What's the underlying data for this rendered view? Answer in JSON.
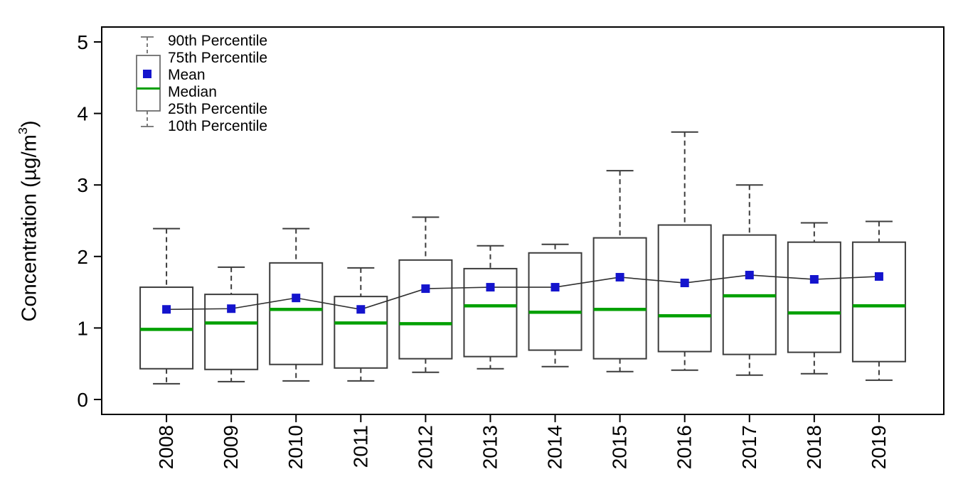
{
  "figure": {
    "background": "#ffffff",
    "ylabel_parts": {
      "prefix": "Concentration (µg/m",
      "sup": "3",
      "suffix": ")"
    }
  },
  "chart_data": {
    "type": "boxplot",
    "title": "",
    "xlabel": "",
    "ylabel": "Concentration (µg/m³)",
    "ylim": [
      -0.2,
      5.2
    ],
    "yticks": [
      0,
      1,
      2,
      3,
      4,
      5
    ],
    "grid": false,
    "legend_position": "top-left-inside",
    "legend": [
      "90th Percentile",
      "75th Percentile",
      "Mean",
      "Median",
      "25th Percentile",
      "10th Percentile"
    ],
    "categories": [
      "2008",
      "2009",
      "2010",
      "2011",
      "2012",
      "2013",
      "2014",
      "2015",
      "2016",
      "2017",
      "2018",
      "2019"
    ],
    "boxes": [
      {
        "label": "2008",
        "p10": 0.22,
        "p25": 0.43,
        "median": 0.98,
        "mean": 1.26,
        "p75": 1.57,
        "p90": 2.39
      },
      {
        "label": "2009",
        "p10": 0.25,
        "p25": 0.42,
        "median": 1.07,
        "mean": 1.27,
        "p75": 1.47,
        "p90": 1.85
      },
      {
        "label": "2010",
        "p10": 0.26,
        "p25": 0.49,
        "median": 1.26,
        "mean": 1.42,
        "p75": 1.91,
        "p90": 2.39
      },
      {
        "label": "2011",
        "p10": 0.26,
        "p25": 0.44,
        "median": 1.07,
        "mean": 1.26,
        "p75": 1.44,
        "p90": 1.84
      },
      {
        "label": "2012",
        "p10": 0.38,
        "p25": 0.57,
        "median": 1.06,
        "mean": 1.55,
        "p75": 1.95,
        "p90": 2.55
      },
      {
        "label": "2013",
        "p10": 0.43,
        "p25": 0.6,
        "median": 1.31,
        "mean": 1.57,
        "p75": 1.83,
        "p90": 2.15
      },
      {
        "label": "2014",
        "p10": 0.46,
        "p25": 0.69,
        "median": 1.22,
        "mean": 1.57,
        "p75": 2.05,
        "p90": 2.17
      },
      {
        "label": "2015",
        "p10": 0.39,
        "p25": 0.57,
        "median": 1.26,
        "mean": 1.71,
        "p75": 2.26,
        "p90": 3.2
      },
      {
        "label": "2016",
        "p10": 0.41,
        "p25": 0.67,
        "median": 1.17,
        "mean": 1.63,
        "p75": 2.44,
        "p90": 3.74
      },
      {
        "label": "2017",
        "p10": 0.34,
        "p25": 0.63,
        "median": 1.45,
        "mean": 1.74,
        "p75": 2.3,
        "p90": 3.0
      },
      {
        "label": "2018",
        "p10": 0.36,
        "p25": 0.66,
        "median": 1.21,
        "mean": 1.68,
        "p75": 2.2,
        "p90": 2.47
      },
      {
        "label": "2019",
        "p10": 0.27,
        "p25": 0.53,
        "median": 1.31,
        "mean": 1.72,
        "p75": 2.2,
        "p90": 2.49
      }
    ],
    "mean_line": true,
    "colors": {
      "median": "#00A000",
      "mean_marker": "#1414CD",
      "mean_line": "#303030",
      "box_stroke": "#3C3C3C",
      "whisker": "#3C3C3C",
      "axis": "#000000",
      "legend_stroke": "#6E6E6E"
    }
  }
}
